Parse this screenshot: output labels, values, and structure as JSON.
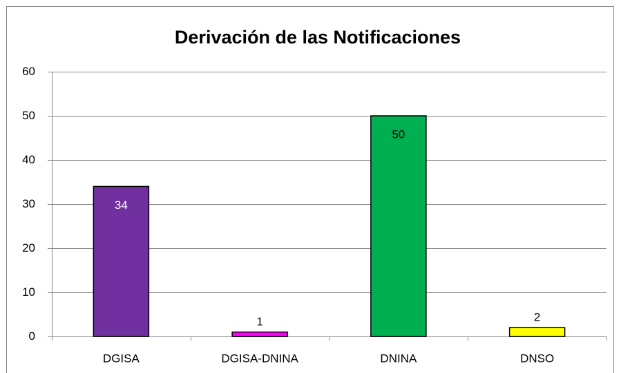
{
  "chart_data": {
    "type": "bar",
    "title": "Derivación de las Notificaciones",
    "categories": [
      "DGISA",
      "DGISA-DNINA",
      "DNINA",
      "DNSO"
    ],
    "values": [
      34,
      1,
      50,
      2
    ],
    "colors": [
      "#7030a0",
      "#ff00ff",
      "#00b050",
      "#ffff00"
    ],
    "ylim": [
      0,
      60
    ],
    "yticks": [
      0,
      10,
      20,
      30,
      40,
      50,
      60
    ],
    "grid": true
  }
}
